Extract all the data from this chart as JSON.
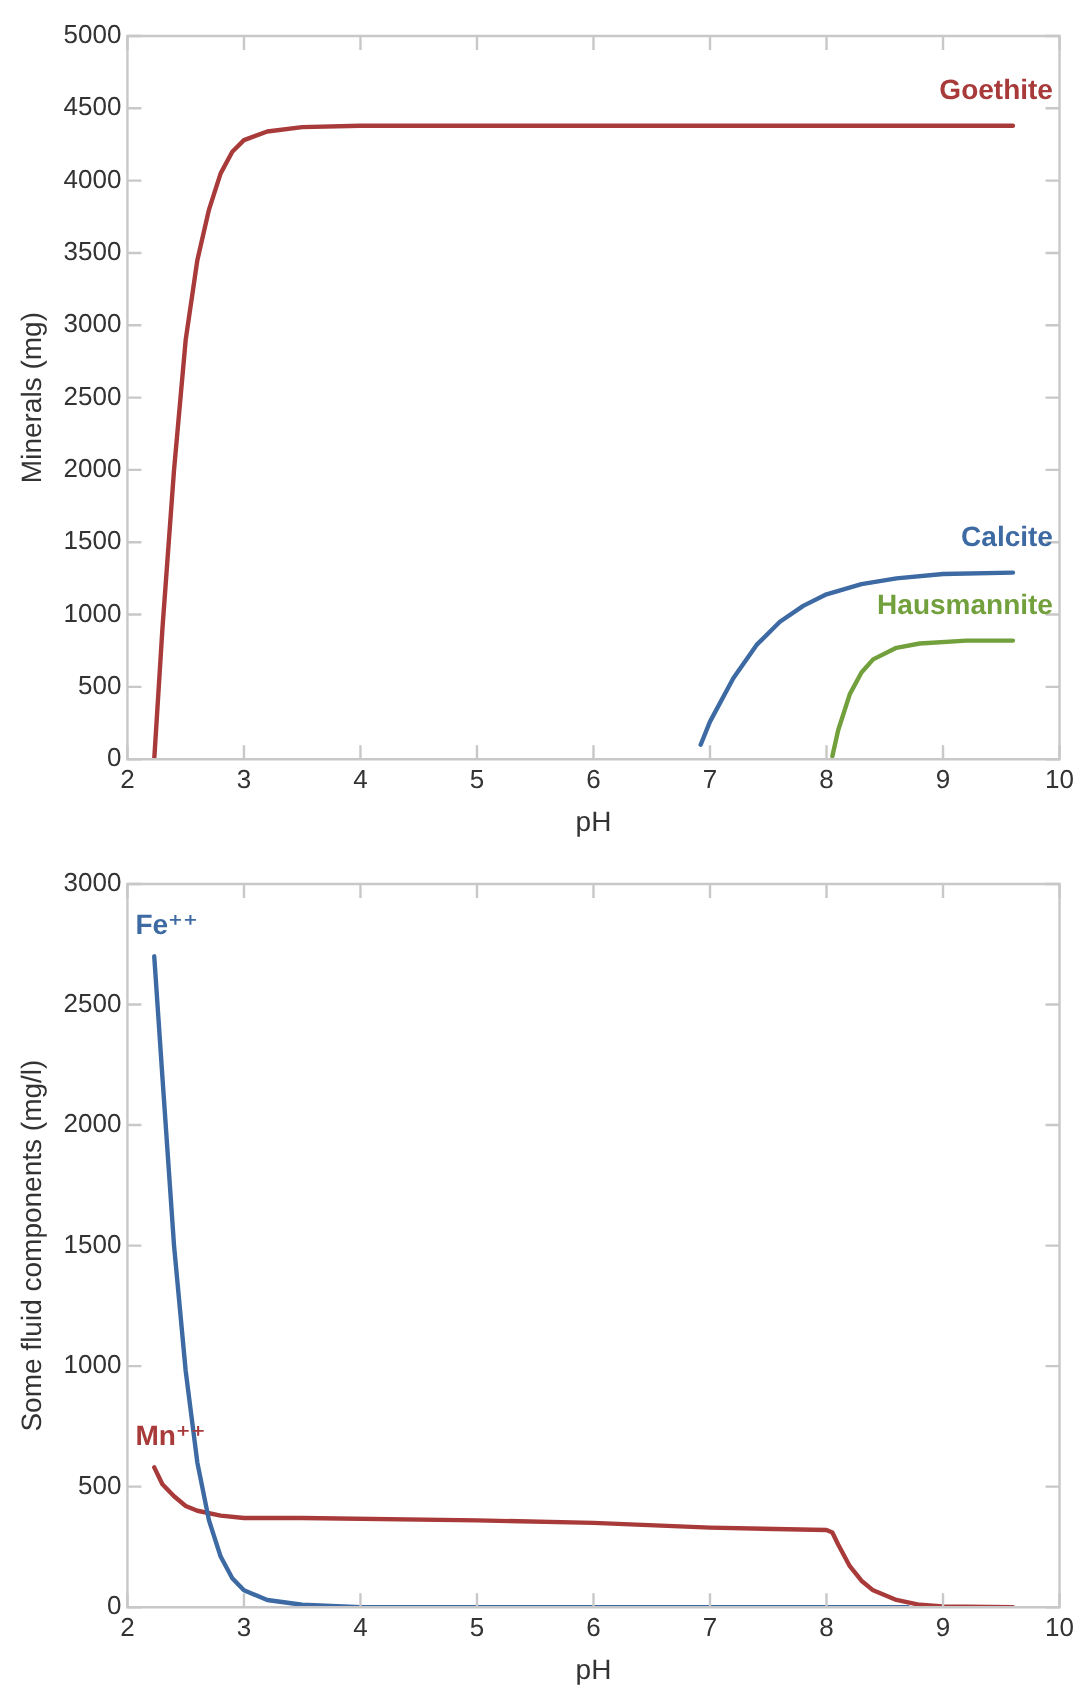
{
  "chart_data": [
    {
      "type": "line",
      "xlabel": "pH",
      "ylabel": "Minerals (mg)",
      "xlim": [
        2,
        10
      ],
      "xticks": [
        2,
        3,
        4,
        5,
        6,
        7,
        8,
        9,
        10
      ],
      "ylim": [
        0,
        5000
      ],
      "yticks": [
        0,
        500,
        1000,
        1500,
        2000,
        2500,
        3000,
        3500,
        4000,
        4500,
        5000
      ],
      "grid": false,
      "legend": false,
      "marker": "none",
      "series": [
        {
          "name": "Goethite",
          "color": "#a83a3a",
          "x": [
            2.23,
            2.3,
            2.4,
            2.5,
            2.6,
            2.7,
            2.8,
            2.9,
            3.0,
            3.2,
            3.5,
            4,
            6,
            9.6
          ],
          "values": [
            0,
            900,
            2000,
            2900,
            3450,
            3800,
            4050,
            4200,
            4280,
            4340,
            4370,
            4380,
            4380,
            4380
          ]
        },
        {
          "name": "Calcite",
          "color": "#3d6aa3",
          "x": [
            6.92,
            7.0,
            7.2,
            7.4,
            7.6,
            7.8,
            8.0,
            8.3,
            8.6,
            9.0,
            9.6
          ],
          "values": [
            100,
            260,
            560,
            790,
            950,
            1060,
            1140,
            1210,
            1250,
            1280,
            1290
          ]
        },
        {
          "name": "Hausmannite",
          "color": "#72a03c",
          "x": [
            8.05,
            8.1,
            8.2,
            8.3,
            8.4,
            8.6,
            8.8,
            9.2,
            9.6
          ],
          "values": [
            20,
            200,
            450,
            600,
            690,
            770,
            800,
            820,
            820
          ]
        }
      ]
    },
    {
      "type": "line",
      "xlabel": "pH",
      "ylabel": "Some fluid components (mg/l)",
      "xlim": [
        2,
        10
      ],
      "xticks": [
        2,
        3,
        4,
        5,
        6,
        7,
        8,
        9,
        10
      ],
      "ylim": [
        0,
        3000
      ],
      "yticks": [
        0,
        500,
        1000,
        1500,
        2000,
        2500,
        3000
      ],
      "grid": false,
      "legend": false,
      "marker": "none",
      "series": [
        {
          "name": "Fe⁺⁺",
          "color": "#3d6aa3",
          "x": [
            2.23,
            2.3,
            2.4,
            2.5,
            2.6,
            2.7,
            2.8,
            2.9,
            3.0,
            3.2,
            3.5,
            4,
            8.7
          ],
          "values": [
            2700,
            2200,
            1500,
            980,
            600,
            360,
            210,
            120,
            70,
            30,
            10,
            0,
            0
          ]
        },
        {
          "name": "Mn⁺⁺",
          "color": "#a83a3a",
          "x": [
            2.23,
            2.3,
            2.4,
            2.5,
            2.6,
            2.8,
            3.0,
            3.5,
            5,
            6,
            7,
            8,
            8.05,
            8.1,
            8.2,
            8.3,
            8.4,
            8.6,
            8.8,
            9,
            9.6
          ],
          "values": [
            580,
            510,
            460,
            420,
            400,
            380,
            370,
            370,
            360,
            350,
            330,
            320,
            310,
            260,
            170,
            110,
            70,
            30,
            10,
            3,
            0
          ]
        }
      ]
    }
  ]
}
